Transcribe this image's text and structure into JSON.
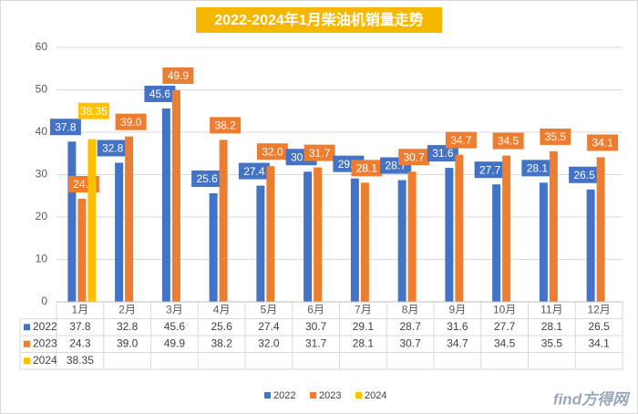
{
  "chart_data": {
    "type": "bar",
    "title": "2022-2024年1月柴油机销量走势",
    "categories": [
      "1月",
      "2月",
      "3月",
      "4月",
      "5月",
      "6月",
      "7月",
      "8月",
      "9月",
      "10月",
      "11月",
      "12月"
    ],
    "series": [
      {
        "name": "2022",
        "color": "#4472c4",
        "values": [
          37.8,
          32.8,
          45.6,
          25.6,
          27.4,
          30.7,
          29.1,
          28.7,
          31.6,
          27.7,
          28.1,
          26.5
        ]
      },
      {
        "name": "2023",
        "color": "#ed7d31",
        "values": [
          24.3,
          39.0,
          49.9,
          38.2,
          32.0,
          31.7,
          28.1,
          30.7,
          34.7,
          34.5,
          35.5,
          34.1
        ],
        "value_labels": [
          "24.3",
          "39.0",
          "49.9",
          "38.2",
          "32.0",
          "31.7",
          "28.1",
          "30.7",
          "34.7",
          "34.5",
          "35.5",
          "34.1"
        ]
      },
      {
        "name": "2024",
        "color": "#ffc000",
        "values": [
          38.35,
          null,
          null,
          null,
          null,
          null,
          null,
          null,
          null,
          null,
          null,
          null
        ]
      }
    ],
    "ylim": [
      0,
      60
    ],
    "yticks": [
      0,
      10,
      20,
      30,
      40,
      50,
      60
    ],
    "grid": true,
    "watermark": "find方得网"
  }
}
